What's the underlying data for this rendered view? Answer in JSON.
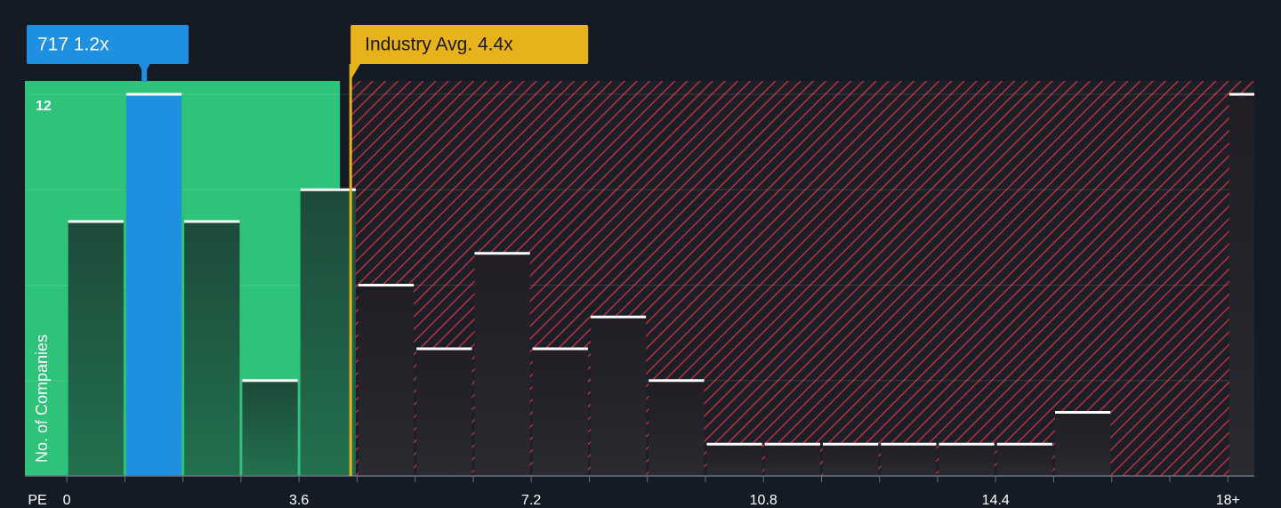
{
  "chart_data": {
    "type": "histogram",
    "x_label": "PE",
    "y_label": "No. of Companies",
    "bins": [
      0,
      0.9,
      1.8,
      2.7,
      3.6,
      4.5,
      5.4,
      6.3,
      7.2,
      8.1,
      9.0,
      9.9,
      10.8,
      11.7,
      12.6,
      13.5,
      14.4,
      15.3,
      16.2,
      17.1,
      18.0
    ],
    "values": [
      8,
      12,
      8,
      3,
      9,
      6,
      4,
      7,
      4,
      5,
      3,
      1,
      1,
      1,
      1,
      1,
      1,
      2,
      0,
      0
    ],
    "overflow_count": 12,
    "xlim": [
      -0.65,
      18.41
    ],
    "ylim": [
      0,
      12.42
    ],
    "xticks": [
      0,
      3.6,
      7.2,
      10.8,
      14.4,
      {
        "value": 18,
        "label": "18+"
      }
    ],
    "yticks": [
      12
    ],
    "ygrid": [
      3,
      6,
      9,
      12
    ],
    "company": {
      "label": "717 1.2x",
      "value": 1.2,
      "color": "#1f8fe0"
    },
    "industry_avg": {
      "label": "Industry Avg. 4.4x",
      "value": 4.4,
      "color": "#e8b21c"
    },
    "below_avg_color": "#2ec27a",
    "above_avg_color": "#c0392b"
  }
}
